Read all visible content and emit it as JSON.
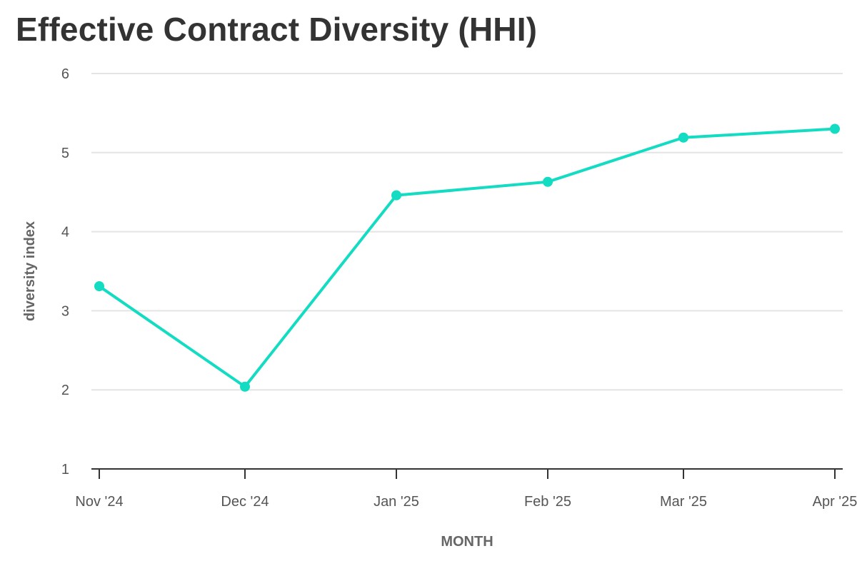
{
  "chart_data": {
    "type": "line",
    "title": "Effective Contract Diversity (HHI)",
    "xlabel": "MONTH",
    "ylabel": "diversity index",
    "categories": [
      "Nov '24",
      "Dec '24",
      "Jan '25",
      "Feb '25",
      "Mar '25",
      "Apr '25"
    ],
    "series": [
      {
        "name": "diversity index",
        "values": [
          3.31,
          2.04,
          4.46,
          4.63,
          5.19,
          5.3
        ],
        "color": "#13dcc2"
      }
    ],
    "yticks": [
      "1",
      "2",
      "3",
      "4",
      "5",
      "6"
    ],
    "ylim": [
      1,
      6
    ],
    "grid": true,
    "legend": "none"
  }
}
